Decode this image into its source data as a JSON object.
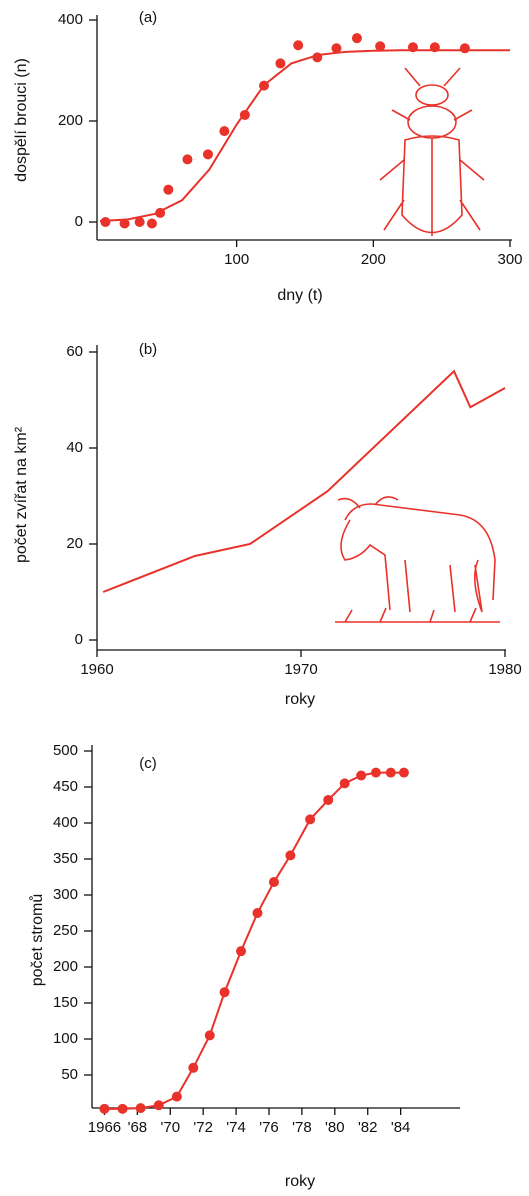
{
  "chart_data": [
    {
      "type": "scatter",
      "panel_label": "(a)",
      "x_label": "dny (t)",
      "y_label": "dospělí brouci (n)",
      "xlim": [
        0,
        300
      ],
      "xticks": [
        100,
        200,
        300
      ],
      "ylim": [
        0,
        400
      ],
      "yticks": [
        0,
        200,
        400
      ],
      "series": [
        {
          "mode": "markers",
          "color": "#e8322a",
          "x": [
            4,
            18,
            29,
            38,
            44,
            50,
            64,
            79,
            91,
            106,
            120,
            132,
            145,
            159,
            173,
            188,
            205,
            229,
            245,
            267
          ],
          "values": [
            0,
            -3,
            0,
            -3,
            18,
            64,
            124,
            134,
            180,
            212,
            270,
            314,
            350,
            326,
            344,
            364,
            348,
            346,
            346,
            344
          ]
        },
        {
          "mode": "line",
          "color": "#e8322a",
          "x": [
            0,
            20,
            40,
            60,
            80,
            100,
            120,
            140,
            160,
            180,
            200,
            220,
            240,
            260,
            280,
            300
          ],
          "values": [
            2,
            5,
            16,
            43,
            104,
            193,
            271,
            314,
            331,
            337,
            339,
            340,
            340,
            340,
            340,
            340
          ]
        }
      ]
    },
    {
      "type": "line",
      "panel_label": "(b)",
      "x_label": "roky",
      "y_label": "počet zvířat na km²",
      "xlim": [
        1960,
        1980
      ],
      "xticks": [
        1960,
        1970,
        1980
      ],
      "ylim": [
        0,
        60
      ],
      "yticks": [
        0,
        20,
        40,
        60
      ],
      "series": [
        {
          "mode": "line",
          "color": "#e8322a",
          "x": [
            1960.3,
            1964.8,
            1967.5,
            1971.3,
            1977.5,
            1978.3,
            1980
          ],
          "values": [
            10,
            17.5,
            20,
            31,
            56,
            48.5,
            52.5
          ]
        }
      ]
    },
    {
      "type": "line",
      "panel_label": "(c)",
      "x_label": "roky",
      "y_label": "počet stromů",
      "xlim": [
        1965,
        1987
      ],
      "xticks": [
        1966,
        {
          "value": 1968,
          "label": "'68"
        },
        {
          "value": 1970,
          "label": "'70"
        },
        {
          "value": 1972,
          "label": "'72"
        },
        {
          "value": 1974,
          "label": "'74"
        },
        {
          "value": 1976,
          "label": "'76"
        },
        {
          "value": 1978,
          "label": "'78"
        },
        {
          "value": 1980,
          "label": "'80"
        },
        {
          "value": 1982,
          "label": "'82"
        },
        {
          "value": 1984,
          "label": "'84"
        }
      ],
      "ylim": [
        0,
        500
      ],
      "yticks": [
        50,
        100,
        150,
        200,
        250,
        300,
        350,
        400,
        450,
        500
      ],
      "series": [
        {
          "mode": "line+markers",
          "color": "#e8322a",
          "x": [
            1966.0,
            1967.1,
            1968.2,
            1969.3,
            1970.4,
            1971.4,
            1972.4,
            1973.3,
            1974.3,
            1975.3,
            1976.3,
            1977.3,
            1978.5,
            1979.6,
            1980.6,
            1981.6,
            1982.5,
            1983.4,
            1984.2
          ],
          "values": [
            3,
            3,
            4,
            8,
            20,
            60,
            105,
            165,
            222,
            275,
            318,
            355,
            405,
            432,
            455,
            466,
            470,
            470,
            470
          ]
        }
      ]
    }
  ]
}
